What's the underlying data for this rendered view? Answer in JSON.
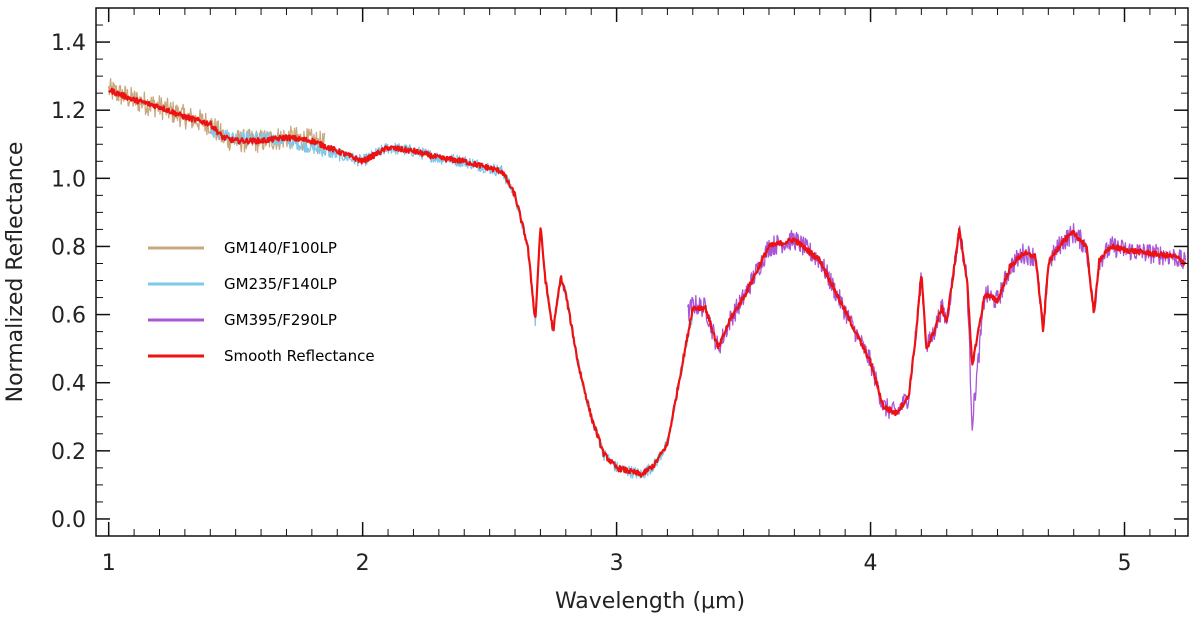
{
  "chart_data": {
    "type": "line",
    "title": "",
    "xlabel": "Wavelength (μm)",
    "ylabel": "Normalized Reflectance",
    "xlim": [
      0.95,
      5.25
    ],
    "ylim": [
      -0.05,
      1.5
    ],
    "x_ticks": [
      1,
      2,
      3,
      4,
      5
    ],
    "y_ticks": [
      0.0,
      0.2,
      0.4,
      0.6,
      0.8,
      1.0,
      1.2,
      1.4
    ],
    "x_tick_labels": [
      "1",
      "2",
      "3",
      "4",
      "5"
    ],
    "y_tick_labels": [
      "0.0",
      "0.2",
      "0.4",
      "0.6",
      "0.8",
      "1.0",
      "1.2",
      "1.4"
    ],
    "grid": false,
    "legend_position": "left-middle",
    "series": [
      {
        "name": "GM140/F100LP",
        "color": "#c8a87e",
        "noise": 0.035,
        "x": [
          1.0,
          1.1,
          1.2,
          1.3,
          1.4,
          1.45,
          1.5,
          1.6,
          1.7,
          1.8,
          1.85
        ],
        "y": [
          1.26,
          1.23,
          1.21,
          1.18,
          1.16,
          1.12,
          1.11,
          1.11,
          1.12,
          1.11,
          1.1
        ]
      },
      {
        "name": "GM235/F140LP",
        "color": "#7ec8ea",
        "noise": 0.018,
        "x": [
          1.4,
          1.5,
          1.6,
          1.7,
          1.8,
          1.9,
          2.0,
          2.1,
          2.2,
          2.3,
          2.4,
          2.5,
          2.55,
          2.6,
          2.65,
          2.68,
          2.7,
          2.72,
          2.75,
          2.78,
          2.8,
          2.85,
          2.9,
          2.95,
          3.0,
          3.05,
          3.1,
          3.15,
          3.2,
          3.25,
          3.3
        ],
        "y": [
          1.14,
          1.12,
          1.12,
          1.11,
          1.09,
          1.07,
          1.05,
          1.09,
          1.08,
          1.06,
          1.05,
          1.03,
          1.02,
          0.95,
          0.8,
          0.58,
          0.86,
          0.7,
          0.55,
          0.71,
          0.66,
          0.45,
          0.3,
          0.19,
          0.15,
          0.14,
          0.13,
          0.16,
          0.22,
          0.42,
          0.6
        ]
      },
      {
        "name": "GM395/F290LP",
        "color": "#a855d6",
        "noise": 0.03,
        "x": [
          3.28,
          3.3,
          3.35,
          3.4,
          3.45,
          3.5,
          3.6,
          3.7,
          3.8,
          3.9,
          4.0,
          4.05,
          4.1,
          4.15,
          4.18,
          4.2,
          4.22,
          4.25,
          4.28,
          4.3,
          4.35,
          4.38,
          4.4,
          4.45,
          4.5,
          4.55,
          4.6,
          4.65,
          4.68,
          4.7,
          4.75,
          4.8,
          4.85,
          4.88,
          4.9,
          4.95,
          5.0,
          5.1,
          5.2,
          5.24
        ],
        "y": [
          0.6,
          0.63,
          0.62,
          0.5,
          0.59,
          0.65,
          0.8,
          0.82,
          0.76,
          0.61,
          0.46,
          0.33,
          0.31,
          0.36,
          0.55,
          0.72,
          0.5,
          0.55,
          0.62,
          0.58,
          0.85,
          0.7,
          0.28,
          0.66,
          0.64,
          0.74,
          0.78,
          0.77,
          0.55,
          0.75,
          0.81,
          0.84,
          0.8,
          0.6,
          0.76,
          0.8,
          0.79,
          0.78,
          0.77,
          0.75
        ]
      },
      {
        "name": "Smooth Reflectance",
        "color": "#ee1111",
        "noise": 0.008,
        "x": [
          1.0,
          1.1,
          1.2,
          1.3,
          1.4,
          1.45,
          1.5,
          1.6,
          1.7,
          1.8,
          1.9,
          2.0,
          2.1,
          2.2,
          2.3,
          2.4,
          2.5,
          2.55,
          2.6,
          2.65,
          2.68,
          2.7,
          2.72,
          2.75,
          2.78,
          2.8,
          2.85,
          2.9,
          2.95,
          3.0,
          3.05,
          3.1,
          3.15,
          3.2,
          3.25,
          3.3,
          3.35,
          3.4,
          3.45,
          3.5,
          3.6,
          3.7,
          3.8,
          3.9,
          4.0,
          4.05,
          4.1,
          4.15,
          4.18,
          4.2,
          4.22,
          4.25,
          4.28,
          4.3,
          4.35,
          4.38,
          4.4,
          4.45,
          4.5,
          4.55,
          4.6,
          4.65,
          4.68,
          4.7,
          4.75,
          4.8,
          4.85,
          4.88,
          4.9,
          4.95,
          5.0,
          5.1,
          5.2,
          5.24
        ],
        "y": [
          1.26,
          1.23,
          1.21,
          1.18,
          1.16,
          1.12,
          1.11,
          1.11,
          1.12,
          1.11,
          1.08,
          1.05,
          1.09,
          1.08,
          1.06,
          1.05,
          1.03,
          1.02,
          0.95,
          0.8,
          0.58,
          0.86,
          0.7,
          0.55,
          0.71,
          0.66,
          0.45,
          0.3,
          0.19,
          0.15,
          0.14,
          0.13,
          0.16,
          0.22,
          0.42,
          0.62,
          0.62,
          0.5,
          0.59,
          0.65,
          0.8,
          0.82,
          0.76,
          0.61,
          0.46,
          0.33,
          0.31,
          0.36,
          0.55,
          0.72,
          0.5,
          0.55,
          0.62,
          0.58,
          0.85,
          0.7,
          0.45,
          0.66,
          0.64,
          0.74,
          0.78,
          0.77,
          0.55,
          0.75,
          0.81,
          0.84,
          0.8,
          0.6,
          0.76,
          0.8,
          0.79,
          0.78,
          0.77,
          0.75
        ]
      }
    ]
  }
}
